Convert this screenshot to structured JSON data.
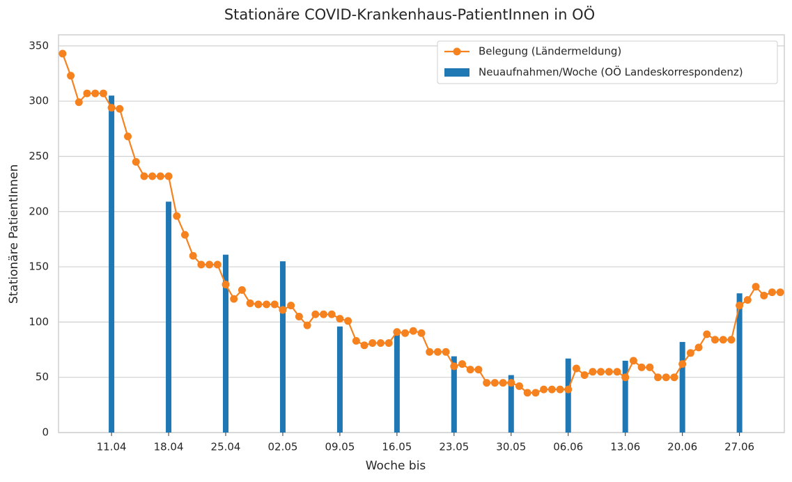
{
  "chart_data": {
    "type": "combo",
    "title": "Stationäre COVID-Krankenhaus-PatientInnen in OÖ",
    "x_label": "Woche bis",
    "y_label": "Stationäre PatientInnen",
    "categories": [
      null,
      null,
      null,
      null,
      null,
      null,
      "11.04",
      null,
      null,
      null,
      null,
      null,
      null,
      "18.04",
      null,
      null,
      null,
      null,
      null,
      null,
      "25.04",
      null,
      null,
      null,
      null,
      null,
      null,
      "02.05",
      null,
      null,
      null,
      null,
      null,
      null,
      "09.05",
      null,
      null,
      null,
      null,
      null,
      null,
      "16.05",
      null,
      null,
      null,
      null,
      null,
      null,
      "23.05",
      null,
      null,
      null,
      null,
      null,
      null,
      "30.05",
      null,
      null,
      null,
      null,
      null,
      null,
      "06.06",
      null,
      null,
      null,
      null,
      null,
      null,
      "13.06",
      null,
      null,
      null,
      null,
      null,
      null,
      "20.06",
      null,
      null,
      null,
      null,
      null,
      null,
      "27.06",
      null,
      null,
      null,
      null,
      null
    ],
    "series": [
      {
        "name": "Belegung (Ländermeldung)",
        "type": "line",
        "color": "#f5821f",
        "values": [
          343,
          323,
          299,
          307,
          307,
          307,
          294,
          293,
          268,
          245,
          232,
          232,
          232,
          232,
          196,
          179,
          160,
          152,
          152,
          152,
          134,
          121,
          129,
          117,
          116,
          116,
          116,
          111,
          115,
          105,
          97,
          107,
          107,
          107,
          103,
          101,
          83,
          79,
          81,
          81,
          81,
          91,
          90,
          92,
          90,
          73,
          73,
          73,
          60,
          62,
          57,
          57,
          45,
          45,
          45,
          45,
          42,
          36,
          36,
          39,
          39,
          39,
          39,
          58,
          52,
          55,
          55,
          55,
          55,
          50,
          65,
          59,
          59,
          50,
          50,
          50,
          62,
          72,
          77,
          89,
          84,
          84,
          84,
          115,
          120,
          132,
          124,
          127,
          127
        ]
      },
      {
        "name": "Neuaufnahmen/Woche (OÖ Landeskorrespondenz)",
        "type": "bar",
        "color": "#1f77b4",
        "values": [
          null,
          null,
          null,
          null,
          null,
          null,
          305,
          null,
          null,
          null,
          null,
          null,
          null,
          209,
          null,
          null,
          null,
          null,
          null,
          null,
          161,
          null,
          null,
          null,
          null,
          null,
          null,
          155,
          null,
          null,
          null,
          null,
          null,
          null,
          96,
          null,
          null,
          null,
          null,
          null,
          null,
          91,
          null,
          null,
          null,
          null,
          null,
          null,
          69,
          null,
          null,
          null,
          null,
          null,
          null,
          52,
          null,
          null,
          null,
          null,
          null,
          null,
          67,
          null,
          null,
          null,
          null,
          null,
          null,
          65,
          null,
          null,
          null,
          null,
          null,
          null,
          82,
          null,
          null,
          null,
          null,
          null,
          null,
          126,
          null,
          null,
          null,
          null,
          null
        ]
      }
    ],
    "ylim": [
      0,
      360
    ],
    "yticks": [
      0,
      50,
      100,
      150,
      200,
      250,
      300,
      350
    ],
    "grid": true,
    "legend": "upper right"
  }
}
